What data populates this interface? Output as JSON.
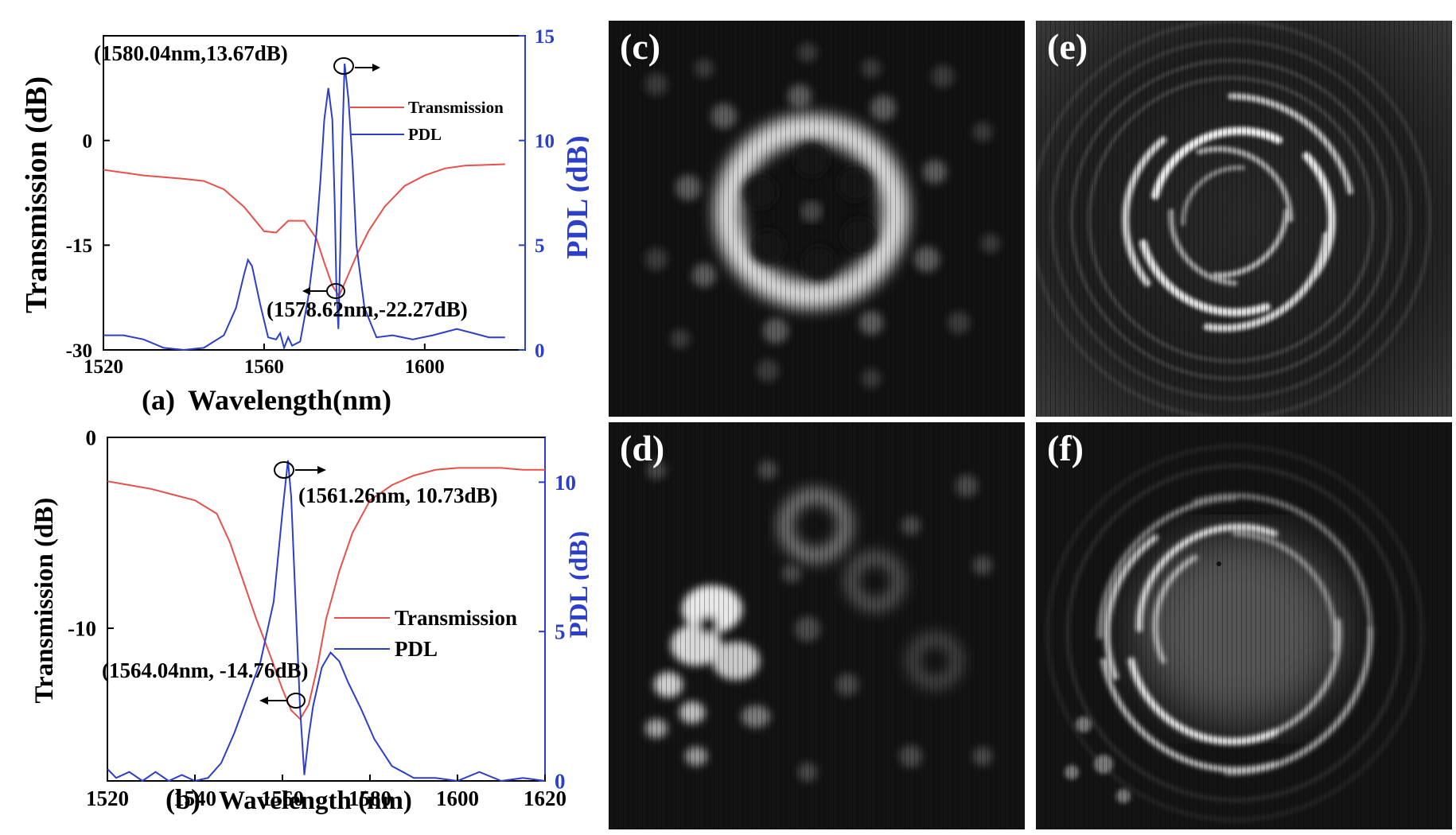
{
  "chart_data": [
    {
      "type": "line",
      "panel": "(a)",
      "xlabel": "Wavelength(nm)",
      "ylabel": "Transmission (dB)",
      "y2label": "PDL (dB)",
      "xlim": [
        1520,
        1625
      ],
      "ylim": [
        -30,
        15
      ],
      "y2lim": [
        0,
        15
      ],
      "xticks": [
        "1520",
        "1560",
        "1600"
      ],
      "yticks": [
        "0",
        "-15",
        "-30"
      ],
      "y2ticks": [
        "15",
        "10",
        "5",
        "0"
      ],
      "legend": {
        "placement": "top-right",
        "entries": [
          "Transmission",
          "PDL"
        ]
      },
      "colors": {
        "transmission": "#e8504a",
        "pdl": "#2c3fc9",
        "right_axis": "#2c3fc9"
      },
      "annotations": [
        "(1580.04nm,13.67dB)",
        "(1578.62nm,-22.27dB)"
      ],
      "series": [
        {
          "name": "Transmission",
          "axis": "left",
          "x": [
            1520,
            1530,
            1540,
            1545,
            1550,
            1555,
            1560,
            1563,
            1566,
            1570,
            1573,
            1575,
            1577,
            1578.62,
            1580,
            1583,
            1586,
            1590,
            1595,
            1600,
            1605,
            1610,
            1620
          ],
          "y": [
            -4.2,
            -5.0,
            -5.5,
            -5.8,
            -7,
            -9.5,
            -13,
            -13.2,
            -11.5,
            -11.5,
            -14,
            -17.5,
            -20.8,
            -22.27,
            -20.5,
            -16.5,
            -13,
            -9.5,
            -6.5,
            -5,
            -4,
            -3.6,
            -3.4
          ]
        },
        {
          "name": "PDL",
          "axis": "right",
          "x": [
            1520,
            1525,
            1530,
            1535,
            1540,
            1545,
            1550,
            1553,
            1555,
            1556,
            1557,
            1559,
            1561,
            1563,
            1564,
            1565,
            1566,
            1567,
            1569,
            1571,
            1573,
            1574,
            1575,
            1576,
            1577,
            1577.6,
            1578,
            1578.5,
            1579,
            1579.5,
            1580.04,
            1581,
            1582,
            1583,
            1585,
            1588,
            1592,
            1597,
            1602,
            1608,
            1612,
            1616,
            1620
          ],
          "y": [
            0.7,
            0.7,
            0.5,
            0.1,
            0.0,
            0.1,
            0.7,
            2.0,
            3.6,
            4.3,
            4.0,
            2.2,
            0.6,
            0.5,
            0.8,
            0.1,
            0.6,
            0.2,
            0.4,
            2.5,
            5.5,
            8.0,
            11.0,
            12.5,
            11.0,
            7.0,
            3.0,
            1.0,
            5.0,
            10.0,
            13.67,
            12.0,
            9.0,
            5.0,
            2.0,
            0.6,
            0.7,
            0.5,
            0.7,
            1.0,
            0.8,
            0.6,
            0.6
          ]
        }
      ]
    },
    {
      "type": "line",
      "panel": "(b)",
      "xlabel": "Wavelength (nm)",
      "ylabel": "Transmission (dB)",
      "y2label": "PDL (dB)",
      "xlim": [
        1520,
        1620
      ],
      "ylim": [
        -18,
        0
      ],
      "y2lim": [
        0,
        11.5
      ],
      "xticks": [
        "1520",
        "1540",
        "1560",
        "1580",
        "1600",
        "1620"
      ],
      "yticks": [
        "0",
        "-10"
      ],
      "y2ticks": [
        "10",
        "5",
        "0"
      ],
      "legend": {
        "placement": "center-right",
        "entries": [
          "Transmission",
          "PDL"
        ]
      },
      "colors": {
        "transmission": "#e8504a",
        "pdl": "#2c3fc9",
        "right_axis": "#2c3fc9"
      },
      "annotations": [
        "(1561.26nm, 10.73dB)",
        "(1564.04nm, -14.76dB)"
      ],
      "series": [
        {
          "name": "Transmission",
          "axis": "left",
          "x": [
            1520,
            1525,
            1530,
            1535,
            1540,
            1545,
            1548,
            1551,
            1554,
            1557,
            1560,
            1562,
            1564.04,
            1566,
            1568,
            1570,
            1573,
            1576,
            1580,
            1585,
            1590,
            1595,
            1600,
            1605,
            1610,
            1615,
            1620
          ],
          "y": [
            -2.3,
            -2.5,
            -2.7,
            -3.0,
            -3.3,
            -4.0,
            -5.5,
            -7.5,
            -9.5,
            -11.3,
            -13.2,
            -14.3,
            -14.76,
            -14.0,
            -12.0,
            -9.5,
            -7.0,
            -5.0,
            -3.3,
            -2.5,
            -2.0,
            -1.7,
            -1.6,
            -1.6,
            -1.6,
            -1.7,
            -1.7
          ]
        },
        {
          "name": "PDL",
          "axis": "right",
          "x": [
            1520,
            1522,
            1525,
            1528,
            1531,
            1534,
            1537,
            1540,
            1543,
            1546,
            1549,
            1552,
            1555,
            1558,
            1560,
            1561.26,
            1562,
            1563,
            1564,
            1565,
            1566,
            1567,
            1569,
            1571,
            1573,
            1575,
            1578,
            1581,
            1585,
            1590,
            1595,
            1600,
            1605,
            1610,
            1615,
            1620
          ],
          "y": [
            0.4,
            0.1,
            0.3,
            0.0,
            0.3,
            0.0,
            0.2,
            0.0,
            0.1,
            0.6,
            1.6,
            2.8,
            4.0,
            6.0,
            9.0,
            10.73,
            9.5,
            6.0,
            2.5,
            0.2,
            1.5,
            2.5,
            3.8,
            4.3,
            4.0,
            3.3,
            2.4,
            1.4,
            0.5,
            0.1,
            0.1,
            0.0,
            0.3,
            0.0,
            0.1,
            0.0
          ]
        }
      ]
    }
  ],
  "images": [
    {
      "label": "(c)",
      "icon": "petal-ring-mode"
    },
    {
      "label": "(d)",
      "icon": "scattered-speckle-mode"
    },
    {
      "label": "(e)",
      "icon": "spiral-interference"
    },
    {
      "label": "(f)",
      "icon": "spiral-interference"
    }
  ]
}
